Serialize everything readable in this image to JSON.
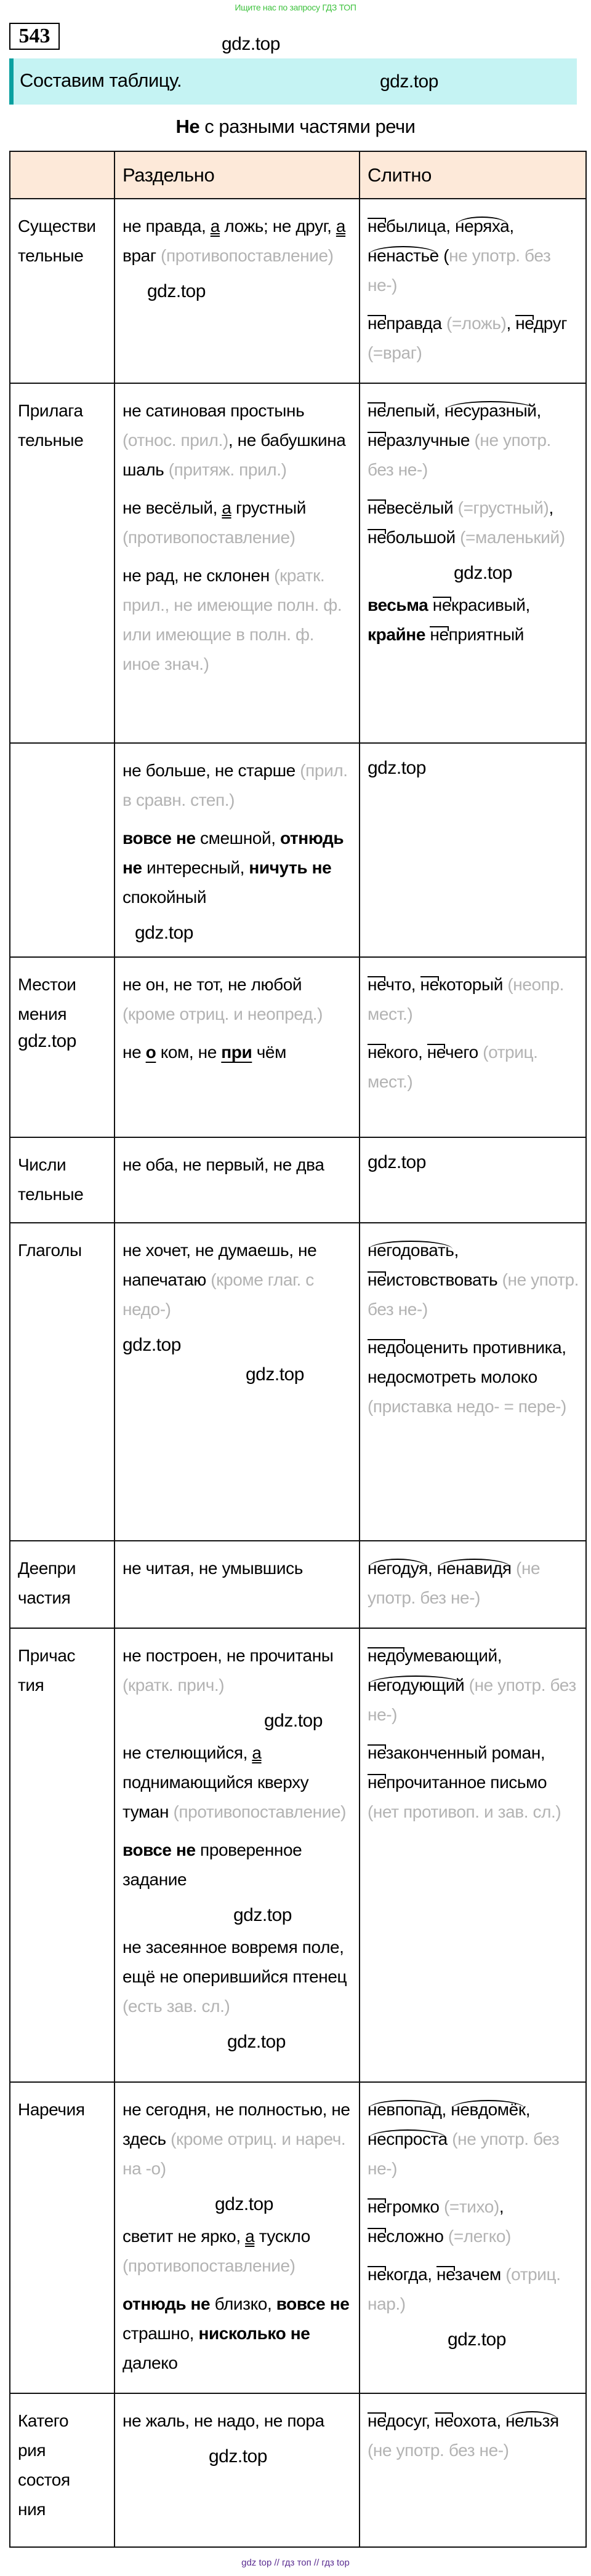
{
  "top_banner": "Ищите нас по запросу ГДЗ ТОП",
  "exercise_number": "543",
  "instruction": "Составим таблицу.",
  "title": {
    "bold": "Не",
    "rest": " с разными частями речи"
  },
  "table": {
    "headers": [
      "",
      "Раздельно",
      "Слитно"
    ],
    "rows": [
      {
        "label": "Существи\nтельные",
        "separate": [
          [
            [
              "t",
              "не правда, "
            ],
            [
              "u",
              "а"
            ],
            [
              "t",
              " ложь; не друг, "
            ],
            [
              "u",
              "а"
            ],
            [
              "t",
              " враг "
            ],
            [
              "g",
              "(противопоставление)"
            ]
          ]
        ],
        "together": [
          [
            [
              "p",
              "не"
            ],
            [
              "t",
              "былица, "
            ],
            [
              "r",
              "неряха"
            ],
            [
              "t",
              ", "
            ],
            [
              "r",
              "ненастье"
            ],
            [
              "t",
              " ("
            ],
            [
              "g",
              "не употр. без не-)"
            ]
          ],
          [
            [
              "p",
              "не"
            ],
            [
              "t",
              "правда "
            ],
            [
              "g",
              "(=ложь)"
            ],
            [
              "t",
              ", "
            ],
            [
              "p",
              "не"
            ],
            [
              "t",
              "друг "
            ],
            [
              "g",
              "(=враг)"
            ]
          ]
        ]
      },
      {
        "label": "Прилага\nтельные",
        "separate": [
          [
            [
              "t",
              "не сатиновая простынь "
            ],
            [
              "g",
              "(относ. прил.)"
            ],
            [
              "t",
              ", не бабушкина шаль "
            ],
            [
              "g",
              "(притяж. прил.)"
            ]
          ],
          [
            [
              "t",
              "не весёлый, "
            ],
            [
              "u",
              "а"
            ],
            [
              "t",
              " грустный "
            ],
            [
              "g",
              "(противопоставление)"
            ]
          ],
          [
            [
              "t",
              "не рад, не склонен "
            ],
            [
              "g",
              "(кратк. прил., не имеющие полн. ф. или имеющие в полн. ф. иное знач.)"
            ]
          ]
        ],
        "together": [
          [
            [
              "p",
              "не"
            ],
            [
              "t",
              "лепый, "
            ],
            [
              "r",
              "несуразный"
            ],
            [
              "t",
              ", "
            ],
            [
              "p",
              "не"
            ],
            [
              "t",
              "разлучные "
            ],
            [
              "g",
              "(не употр. без не-)"
            ]
          ],
          [
            [
              "p",
              "не"
            ],
            [
              "t",
              "весёлый "
            ],
            [
              "g",
              "(=грустный)"
            ],
            [
              "t",
              ", "
            ],
            [
              "p",
              "не"
            ],
            [
              "t",
              "большой "
            ],
            [
              "g",
              "(=маленький)"
            ]
          ],
          [
            [
              "b",
              "весьма"
            ],
            [
              "t",
              " "
            ],
            [
              "p",
              "не"
            ],
            [
              "t",
              "красивый, "
            ],
            [
              "b",
              "крайне"
            ],
            [
              "t",
              " "
            ],
            [
              "p",
              "не"
            ],
            [
              "t",
              "приятный"
            ]
          ]
        ]
      },
      {
        "label": "",
        "separate": [
          [
            [
              "t",
              "не больше, не старше "
            ],
            [
              "g",
              "(прил. в сравн. степ.)"
            ]
          ],
          [
            [
              "b",
              "вовсе не"
            ],
            [
              "t",
              " смешной, "
            ],
            [
              "b",
              "отнюдь не"
            ],
            [
              "t",
              " интересный, "
            ],
            [
              "b",
              "ничуть не"
            ],
            [
              "t",
              " спокойный"
            ]
          ]
        ],
        "together": []
      },
      {
        "label": "Местои\nмения",
        "separate": [
          [
            [
              "t",
              "не он, не тот, не любой "
            ],
            [
              "g",
              "(кроме отриц. и неопред.)"
            ]
          ],
          [
            [
              "t",
              "не "
            ],
            [
              "pu",
              "о"
            ],
            [
              "t",
              " ком, не "
            ],
            [
              "pu",
              "при"
            ],
            [
              "t",
              " чём"
            ]
          ]
        ],
        "together": [
          [
            [
              "p",
              "не"
            ],
            [
              "t",
              "что, "
            ],
            [
              "p",
              "не"
            ],
            [
              "t",
              "который "
            ],
            [
              "g",
              "(неопр. мест.)"
            ]
          ],
          [
            [
              "p",
              "не"
            ],
            [
              "t",
              "кого, "
            ],
            [
              "p",
              "не"
            ],
            [
              "t",
              "чего "
            ],
            [
              "g",
              "(отриц. мест.)"
            ]
          ]
        ]
      },
      {
        "label": "Числи\nтельные",
        "separate": [
          [
            [
              "t",
              "не оба, не первый, не два"
            ]
          ]
        ],
        "together": []
      },
      {
        "label": "Глаголы",
        "separate": [
          [
            [
              "t",
              "не хочет, не думаешь, не напечатаю "
            ],
            [
              "g",
              "(кроме глаг. с недо-)"
            ]
          ]
        ],
        "together": [
          [
            [
              "r",
              "негодовать"
            ],
            [
              "t",
              ", "
            ],
            [
              "p",
              "не"
            ],
            [
              "t",
              "истовствовать "
            ],
            [
              "g",
              "(не употр. без не-)"
            ]
          ],
          [
            [
              "p",
              "недо"
            ],
            [
              "t",
              "оценить противника, недосмотреть молоко "
            ],
            [
              "g",
              "(приставка недо- = пере-)"
            ]
          ]
        ]
      },
      {
        "label": "Деепри\nчастия",
        "separate": [
          [
            [
              "t",
              "не читая, не умывшись"
            ]
          ]
        ],
        "together": [
          [
            [
              "r",
              "негодуя"
            ],
            [
              "t",
              ", "
            ],
            [
              "r",
              "ненавидя"
            ],
            [
              "t",
              " "
            ],
            [
              "g",
              "(не употр. без не-)"
            ]
          ]
        ]
      },
      {
        "label": "Причас\nтия",
        "separate": [
          [
            [
              "t",
              "не построен, не прочитаны "
            ],
            [
              "g",
              "(кратк. прич.)"
            ]
          ],
          [
            [
              "t",
              "не стелющийся, "
            ],
            [
              "u",
              "а"
            ],
            [
              "t",
              " поднимающийся кверху туман "
            ],
            [
              "g",
              "(противопоставление)"
            ]
          ],
          [
            [
              "b",
              "вовсе не"
            ],
            [
              "t",
              " проверенное задание"
            ]
          ],
          [
            [
              "t",
              "не засеянное вовремя поле, ещё не оперившийся птенец "
            ],
            [
              "g",
              "(есть зав. сл.)"
            ]
          ]
        ],
        "together": [
          [
            [
              "p",
              "недо"
            ],
            [
              "t",
              "умевающий, "
            ],
            [
              "r",
              "негодующий"
            ],
            [
              "t",
              " "
            ],
            [
              "g",
              "(не употр. без не-)"
            ]
          ],
          [
            [
              "p",
              "не"
            ],
            [
              "t",
              "законченный роман, "
            ],
            [
              "p",
              "не"
            ],
            [
              "t",
              "прочитанное письмо "
            ],
            [
              "g",
              "(нет противоп. и зав. сл.)"
            ]
          ]
        ]
      },
      {
        "label": "Наречия",
        "separate": [
          [
            [
              "t",
              "не сегодня, не полностью, не здесь "
            ],
            [
              "g",
              "(кроме отриц. и нареч. на -о)"
            ]
          ],
          [
            [
              "t",
              "светит не ярко, "
            ],
            [
              "u",
              "а"
            ],
            [
              "t",
              " тускло "
            ],
            [
              "g",
              "(противопоставление)"
            ]
          ],
          [
            [
              "b",
              "отнюдь не"
            ],
            [
              "t",
              " близко, "
            ],
            [
              "b",
              "вовсе не"
            ],
            [
              "t",
              " страшно, "
            ],
            [
              "b",
              "нисколько не"
            ],
            [
              "t",
              " далеко"
            ]
          ]
        ],
        "together": [
          [
            [
              "r",
              "невпопад"
            ],
            [
              "t",
              ", "
            ],
            [
              "r",
              "невдомёк"
            ],
            [
              "t",
              ", "
            ],
            [
              "r",
              "неспроста"
            ],
            [
              "t",
              " "
            ],
            [
              "g",
              "(не употр. без не-)"
            ]
          ],
          [
            [
              "p",
              "не"
            ],
            [
              "t",
              "громко "
            ],
            [
              "g",
              "(=тихо)"
            ],
            [
              "t",
              ", "
            ],
            [
              "p",
              "не"
            ],
            [
              "t",
              "сложно "
            ],
            [
              "g",
              "(=легко)"
            ]
          ],
          [
            [
              "p",
              "не"
            ],
            [
              "t",
              "когда, "
            ],
            [
              "p",
              "не"
            ],
            [
              "t",
              "зачем "
            ],
            [
              "g",
              "(отриц. нар.)"
            ]
          ]
        ]
      },
      {
        "label": "Катего\nрия\nсостоя\nния",
        "separate": [
          [
            [
              "t",
              "не жаль, не надо, не пора"
            ]
          ]
        ],
        "together": [
          [
            [
              "p",
              "не"
            ],
            [
              "t",
              "досуг, "
            ],
            [
              "p",
              "не"
            ],
            [
              "t",
              "охота, "
            ],
            [
              "r",
              "нельзя"
            ],
            [
              "t",
              " "
            ],
            [
              "g",
              "(не употр. без не-)"
            ]
          ]
        ]
      }
    ]
  },
  "watermarks": [
    "gdz.top",
    "gdz.top",
    "gdz.top",
    "gdz.top",
    "gdz.top",
    "gdz.top",
    "gdz.top",
    "gdz.top",
    "gdz.top",
    "gdz.top",
    "gdz.top",
    "gdz.top",
    "gdz.top",
    "gdz.top",
    "gdz.top",
    "gdz.top"
  ],
  "footer": "gdz top  //  гдз топ  //  гдз top",
  "colors": {
    "banner_bg": "#c5f3f3",
    "banner_accent": "#0aa0a0",
    "header_bg": "#fde9d9",
    "note_gray": "#b3b3b3",
    "top_ad_green": "#3ec23e",
    "footer_purple": "#5a2d91"
  }
}
